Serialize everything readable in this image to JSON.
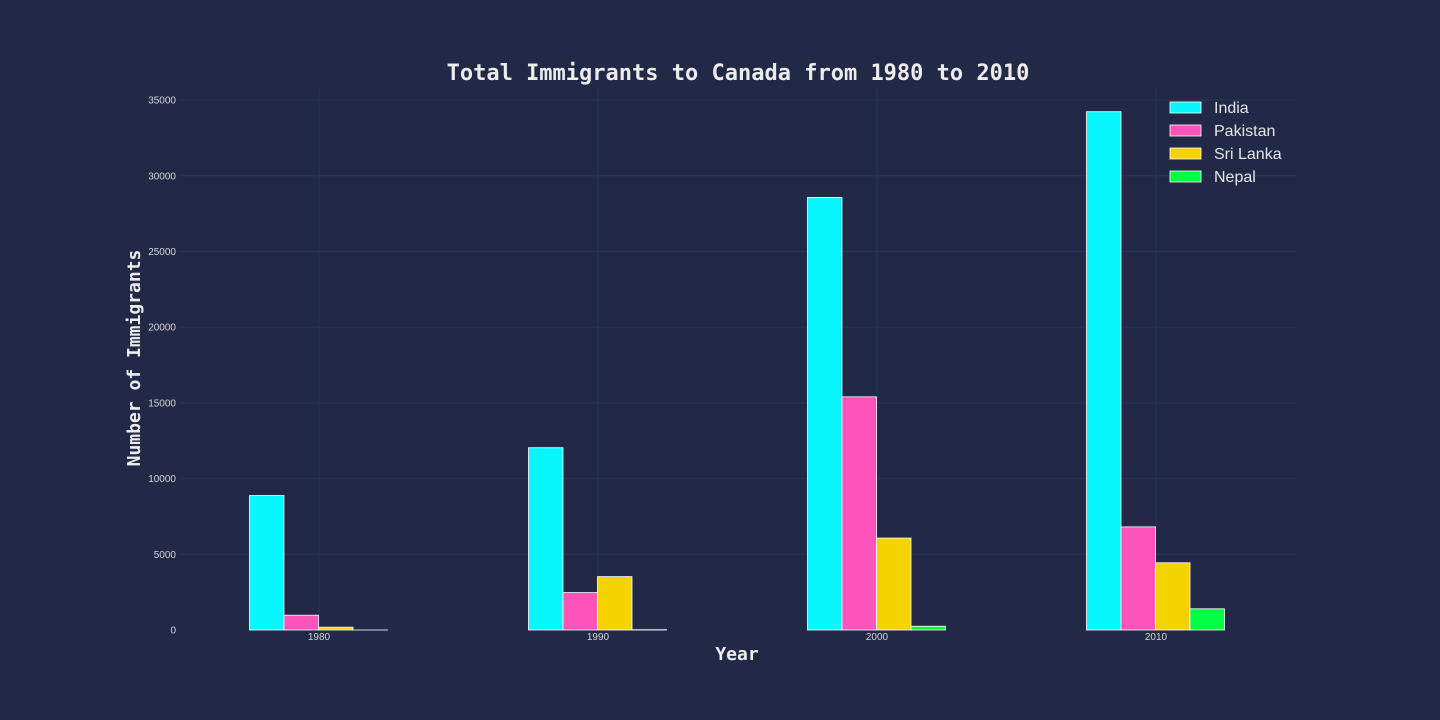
{
  "chart_data": {
    "type": "bar",
    "title": "Total Immigrants to Canada from 1980 to 2010",
    "xlabel": "Year",
    "ylabel": "Number of Immigrants",
    "categories": [
      "1980",
      "1990",
      "2000",
      "2010"
    ],
    "series": [
      {
        "name": "India",
        "color": "#08F7FE",
        "values": [
          8880,
          12041,
          28572,
          34235
        ]
      },
      {
        "name": "Pakistan",
        "color": "#FE53BB",
        "values": [
          978,
          2470,
          15400,
          6811
        ]
      },
      {
        "name": "Sri Lanka",
        "color": "#F5D300",
        "values": [
          185,
          3525,
          6073,
          4440
        ]
      },
      {
        "name": "Nepal",
        "color": "#00ff41",
        "values": [
          1,
          20,
          250,
          1400
        ]
      }
    ],
    "ylim": [
      0,
      35800
    ],
    "yticks": [
      0,
      5000,
      10000,
      15000,
      20000,
      25000,
      30000,
      35000
    ],
    "grid": true,
    "legend_position": "top-right",
    "background": "#212946",
    "grid_color": "#2A3459"
  }
}
